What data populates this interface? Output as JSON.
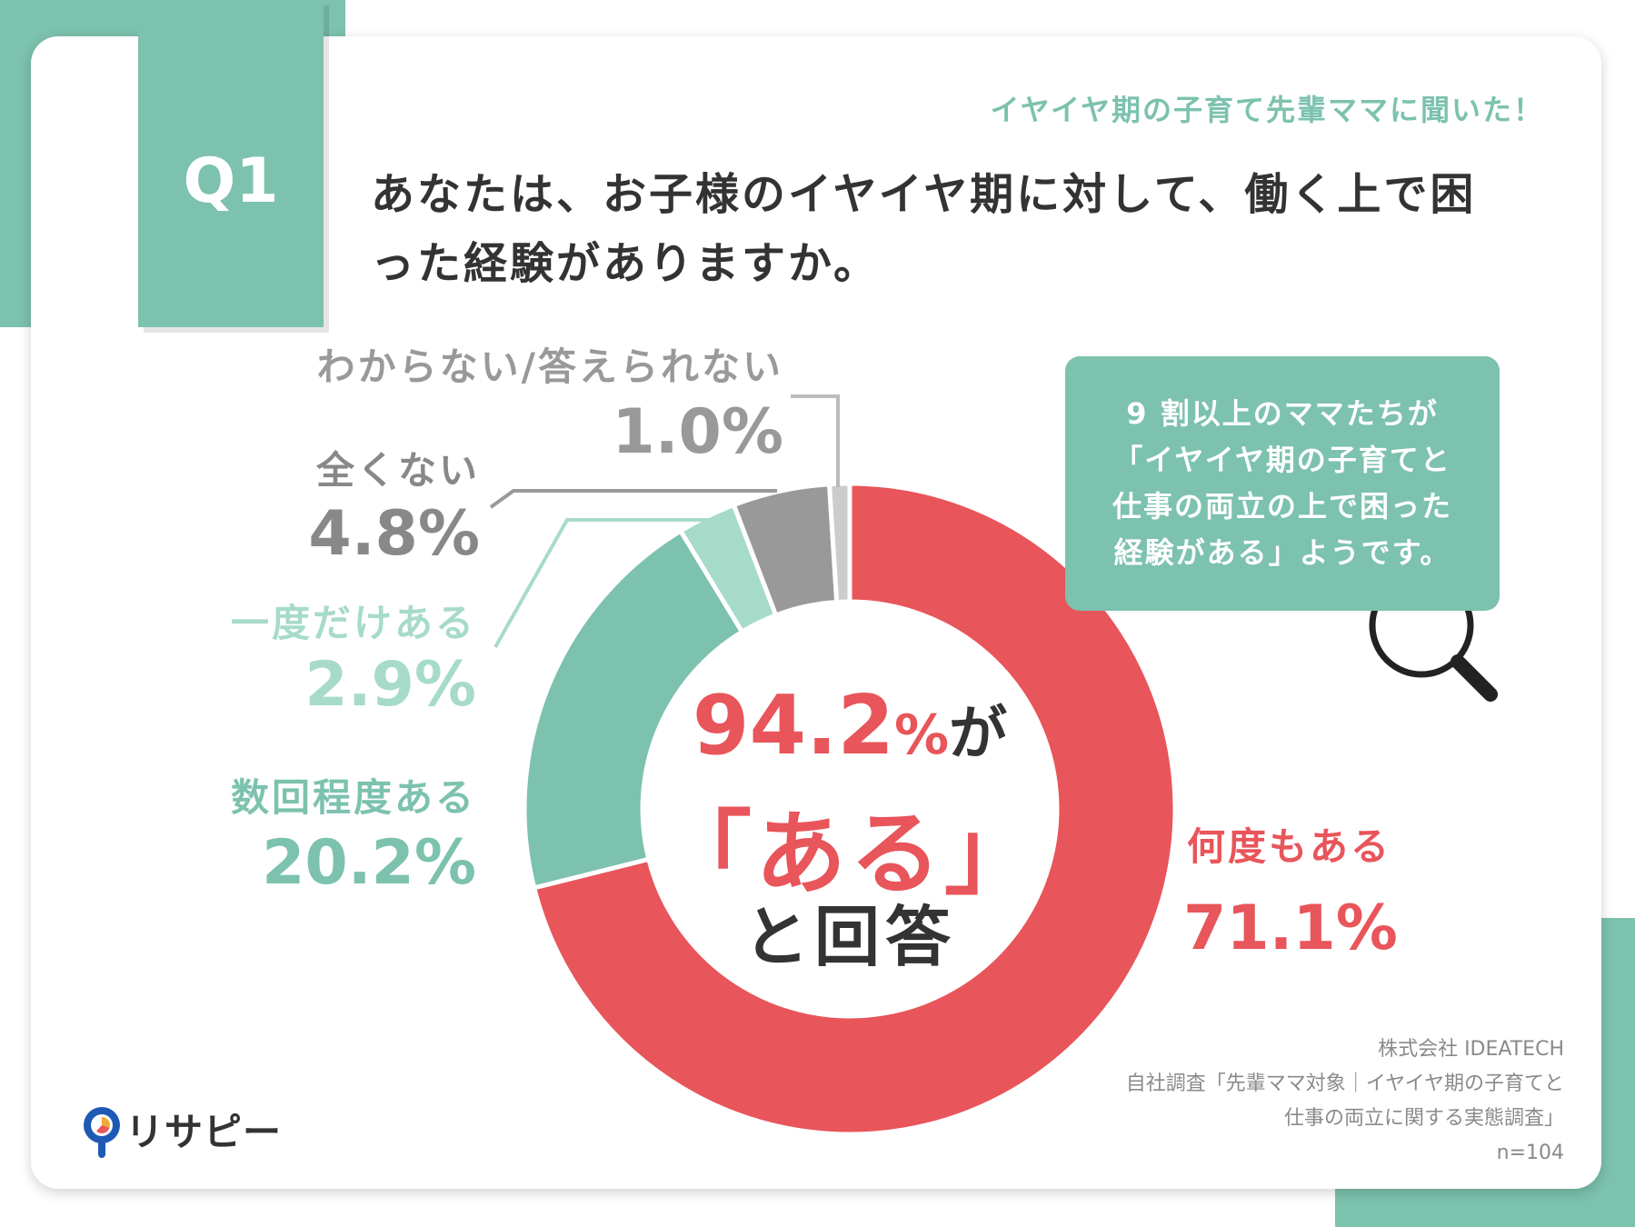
{
  "header": {
    "subtitle": "イヤイヤ期の子育て先輩ママに聞いた！",
    "question_no": "Q1",
    "question": "あなたは、お子様のイヤイヤ期に対して、働く上で困った経験がありますか。"
  },
  "chart_data": {
    "type": "pie",
    "donut": true,
    "slices": [
      {
        "label": "何度もある",
        "value": 71.1,
        "display": "71.1%",
        "color": "#e8555a"
      },
      {
        "label": "数回程度ある",
        "value": 20.2,
        "display": "20.2%",
        "color": "#7cc2ae"
      },
      {
        "label": "一度だけある",
        "value": 2.9,
        "display": "2.9%",
        "color": "#a7dbc9"
      },
      {
        "label": "全くない",
        "value": 4.8,
        "display": "4.8%",
        "color": "#999999"
      },
      {
        "label": "わからない/答えられない",
        "value": 1.0,
        "display": "1.0%",
        "color": "#cccccc"
      }
    ],
    "center": {
      "percent": "94.2",
      "unit": "%",
      "suffix": "が",
      "quote": "「ある」",
      "answer": "と回答"
    }
  },
  "callout": {
    "lines": [
      "9 割以上のママたちが",
      "「イヤイヤ期の子育てと",
      "仕事の両立の上で困った",
      "経験がある」ようです。"
    ]
  },
  "source": {
    "company": "株式会社 IDEATECH",
    "line1": "自社調査「先輩ママ対象｜イヤイヤ期の子育てと",
    "line2": "仕事の両立に関する実態調査」",
    "n": "n=104"
  },
  "logo": {
    "text": "リサピー",
    "icon": "pin-pie-logo-icon"
  }
}
